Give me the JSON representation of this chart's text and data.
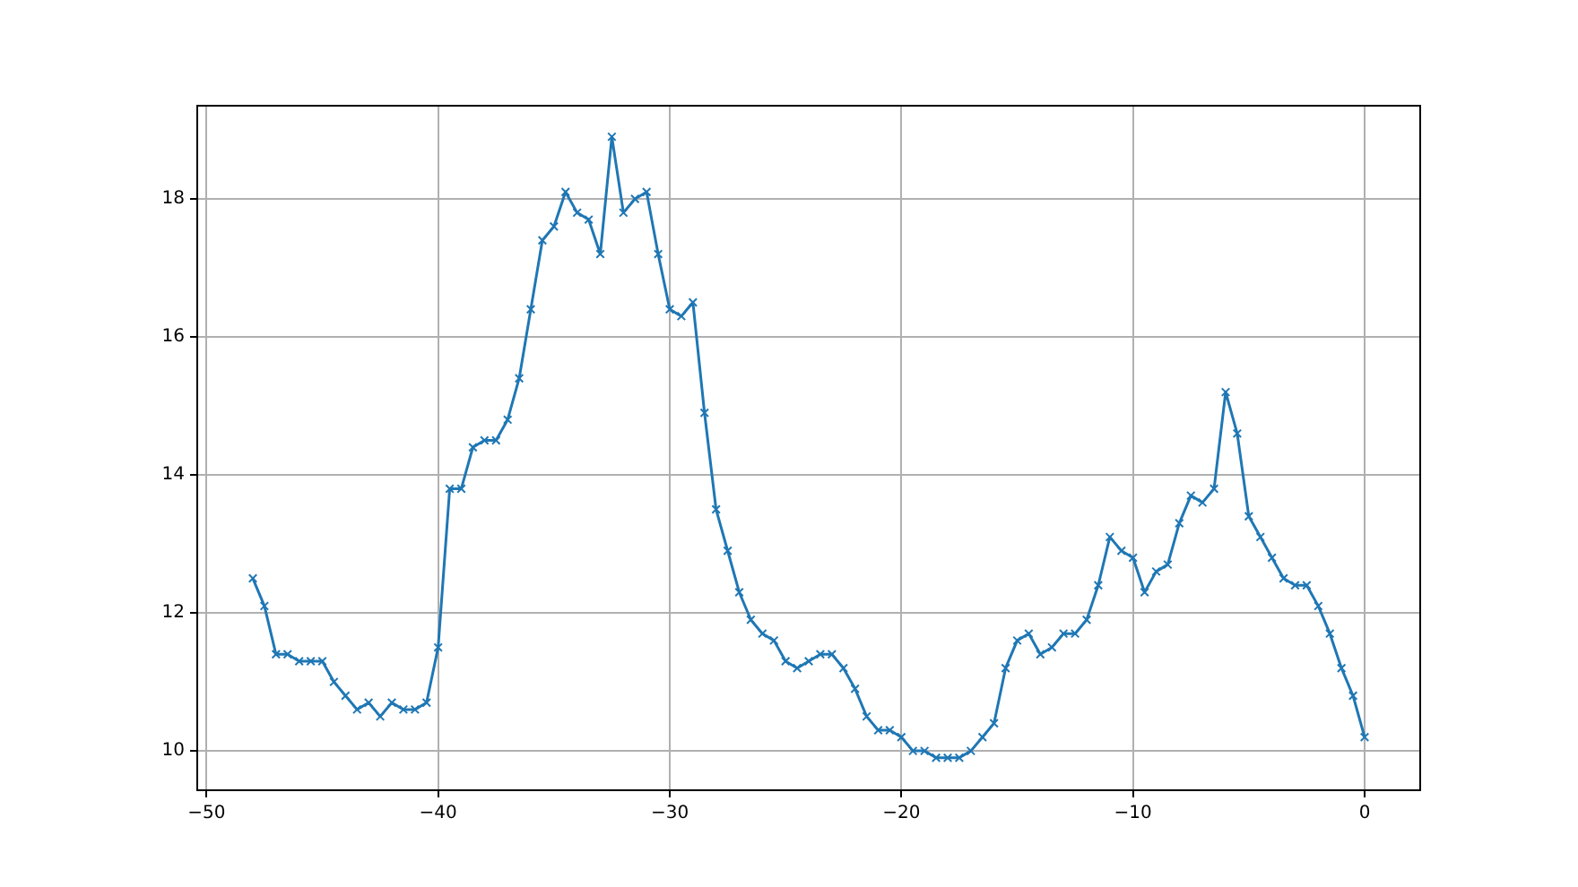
{
  "chart_data": {
    "type": "line",
    "x": [
      -48,
      -47.5,
      -47,
      -46.5,
      -46,
      -45.5,
      -45,
      -44.5,
      -44,
      -43.5,
      -43,
      -42.5,
      -42,
      -41.5,
      -41,
      -40.5,
      -40,
      -39.5,
      -39,
      -38.5,
      -38,
      -37.5,
      -37,
      -36.5,
      -36,
      -35.5,
      -35,
      -34.5,
      -34,
      -33.5,
      -33,
      -32.5,
      -32,
      -31.5,
      -31,
      -30.5,
      -30,
      -29.5,
      -29,
      -28.5,
      -28,
      -27.5,
      -27,
      -26.5,
      -26,
      -25.5,
      -25,
      -24.5,
      -24,
      -23.5,
      -23,
      -22.5,
      -22,
      -21.5,
      -21,
      -20.5,
      -20,
      -19.5,
      -19,
      -18.5,
      -18,
      -17.5,
      -17,
      -16.5,
      -16,
      -15.5,
      -15,
      -14.5,
      -14,
      -13.5,
      -13,
      -12.5,
      -12,
      -11.5,
      -11,
      -10.5,
      -10,
      -9.5,
      -9,
      -8.5,
      -8,
      -7.5,
      -7,
      -6.5,
      -6,
      -5.5,
      -5,
      -4.5,
      -4,
      -3.5,
      -3,
      -2.5,
      -2,
      -1.5,
      -1,
      -0.5,
      0
    ],
    "series": [
      {
        "color": "#1f77b4",
        "values": [
          12.5,
          12.1,
          11.4,
          11.4,
          11.3,
          11.3,
          11.3,
          11.0,
          10.8,
          10.6,
          10.7,
          10.5,
          10.7,
          10.6,
          10.6,
          10.7,
          11.5,
          13.8,
          13.8,
          14.4,
          14.5,
          14.5,
          14.8,
          15.4,
          16.4,
          17.4,
          17.6,
          18.1,
          17.8,
          17.7,
          17.2,
          18.9,
          17.8,
          18.0,
          18.1,
          17.2,
          16.4,
          16.3,
          16.5,
          14.9,
          13.5,
          12.9,
          12.3,
          11.9,
          11.7,
          11.6,
          11.3,
          11.2,
          11.3,
          11.4,
          11.4,
          11.2,
          10.9,
          10.5,
          10.3,
          10.3,
          10.2,
          10.0,
          10.0,
          9.9,
          9.9,
          9.9,
          10.0,
          10.2,
          10.4,
          11.2,
          11.6,
          11.7,
          11.4,
          11.5,
          11.7,
          11.7,
          11.9,
          12.4,
          13.1,
          12.9,
          12.8,
          12.3,
          12.6,
          12.7,
          13.3,
          13.7,
          13.6,
          13.8,
          15.2,
          14.6,
          13.4,
          13.1,
          12.8,
          12.5,
          12.4,
          12.4,
          12.1,
          11.7,
          11.2,
          10.8,
          10.2
        ]
      }
    ],
    "xlim": [
      -50.4,
      2.4
    ],
    "ylim": [
      9.43,
      19.35
    ],
    "xticks": [
      {
        "value": -50,
        "label": "−50"
      },
      {
        "value": -40,
        "label": "−40"
      },
      {
        "value": -30,
        "label": "−30"
      },
      {
        "value": -20,
        "label": "−20"
      },
      {
        "value": -10,
        "label": "−10"
      },
      0
    ],
    "yticks": [
      10,
      12,
      14,
      16,
      18
    ],
    "grid": true,
    "marker": "cross",
    "line_style": "solid"
  }
}
